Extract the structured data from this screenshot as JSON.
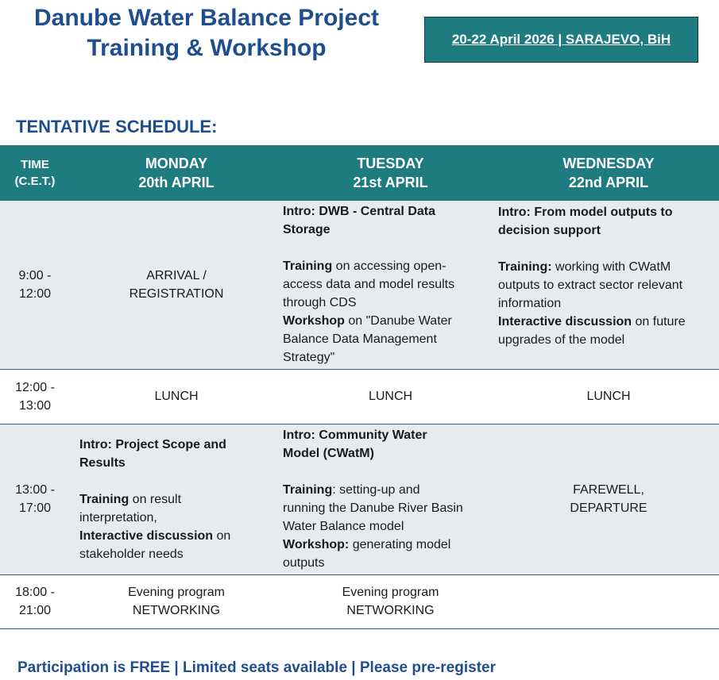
{
  "header": {
    "title_line1": "Danube Water Balance Project",
    "title_line2": "Training & Workshop",
    "date_badge": "20-22 April 2026 | SARAJEVO, BiH"
  },
  "schedule_title": "TENTATIVE SCHEDULE:",
  "columns": {
    "time_line1": "TIME",
    "time_line2": "(C.E.T.)",
    "mon_line1": "MONDAY",
    "mon_line2": "20th APRIL",
    "tue_line1": "TUESDAY",
    "tue_line2": "21st APRIL",
    "wed_line1": "WEDNESDAY",
    "wed_line2": "22nd APRIL"
  },
  "rows": {
    "morning": {
      "time_line1": "9:00 -",
      "time_line2": "12:00",
      "mon_line1": "ARRIVAL /",
      "mon_line2": "REGISTRATION",
      "tue_intro_line1": "Intro: DWB - Central Data",
      "tue_intro_line2": "Storage",
      "tue_l1_bold": "Training",
      "tue_l1_rest": " on accessing open-",
      "tue_l2": "access data and model results",
      "tue_l3": "through CDS",
      "tue_l4_bold": "Workshop",
      "tue_l4_rest": " on \"Danube Water",
      "tue_l5": "Balance Data Management",
      "tue_l6": "Strategy\"",
      "wed_intro_line1": "Intro: From model outputs to",
      "wed_intro_line2": "decision support",
      "wed_l1_bold": "Training:",
      "wed_l1_rest": " working with CWatM",
      "wed_l2": "outputs to extract sector relevant",
      "wed_l3": "information",
      "wed_l4_bold": "Interactive discussion",
      "wed_l4_rest": " on future",
      "wed_l5": "upgrades of the model"
    },
    "lunch": {
      "time_line1": "12:00 -",
      "time_line2": "13:00",
      "mon": "LUNCH",
      "tue": "LUNCH",
      "wed": "LUNCH"
    },
    "afternoon": {
      "time_line1": "13:00 -",
      "time_line2": "17:00",
      "mon_intro_line1": "Intro: Project Scope and",
      "mon_intro_line2": "Results",
      "mon_l1_bold": "Training",
      "mon_l1_rest": " on result",
      "mon_l2": "interpretation,",
      "mon_l3_bold": "Interactive discussion",
      "mon_l3_rest": " on",
      "mon_l4": "stakeholder needs",
      "tue_intro_line1": "Intro: Community Water",
      "tue_intro_line2": "Model (CWatM)",
      "tue_l1_bold": "Training",
      "tue_l1_rest": ": setting-up and",
      "tue_l2": "running the Danube River Basin",
      "tue_l3": "Water Balance model",
      "tue_l4_bold": "Workshop:",
      "tue_l4_rest": " generating model",
      "tue_l5": "outputs",
      "wed_line1": "FAREWELL,",
      "wed_line2": "DEPARTURE"
    },
    "evening": {
      "time_line1": "18:00 -",
      "time_line2": "21:00",
      "mon_line1": "Evening program",
      "mon_line2": "NETWORKING",
      "tue_line1": "Evening program",
      "tue_line2": "NETWORKING"
    }
  },
  "footer": "Participation is FREE | Limited seats available  |  Please pre-register",
  "colors": {
    "title_blue": "#1f4e8f",
    "teal": "#1e7b80",
    "row_shade": "#e8ebee"
  }
}
